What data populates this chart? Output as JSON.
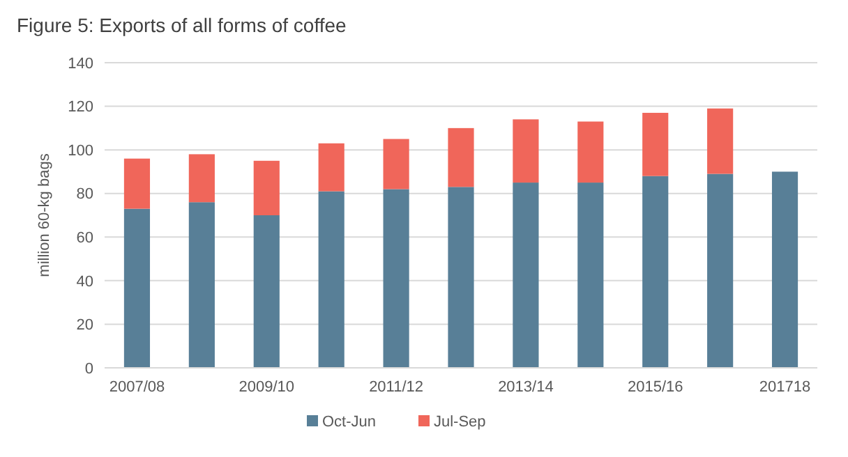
{
  "chart_data": {
    "type": "bar",
    "title": "Figure 5: Exports of all forms of coffee",
    "ylabel": "million 60-kg bags",
    "categories": [
      "2007/08",
      null,
      "2009/10",
      null,
      "2011/12",
      null,
      "2013/14",
      null,
      "2015/16",
      null,
      "201718"
    ],
    "stacked": true,
    "series": [
      {
        "name": "Oct-Jun",
        "color": "#587f97",
        "values": [
          73,
          76,
          70,
          81,
          82,
          83,
          85,
          85,
          88,
          89,
          90
        ]
      },
      {
        "name": "Jul-Sep",
        "color": "#f0665a",
        "values": [
          23,
          22,
          25,
          22,
          23,
          27,
          29,
          28,
          29,
          30,
          null
        ]
      }
    ],
    "ylim": [
      0,
      140
    ],
    "yticks": [
      0,
      20,
      40,
      60,
      80,
      100,
      120,
      140
    ],
    "grid": "y",
    "legend": "bottom"
  }
}
